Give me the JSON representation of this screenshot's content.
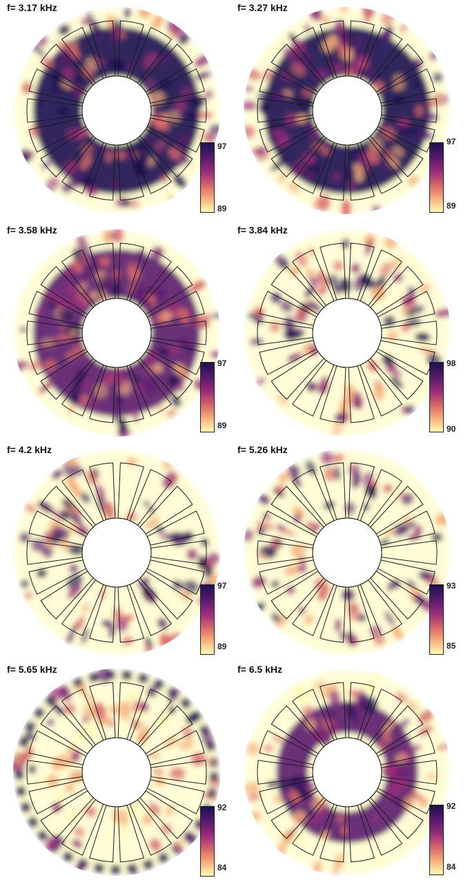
{
  "chart_data": [
    {
      "type": "heatmap",
      "title": "f= 3.17 kHz",
      "colorbar": {
        "max": 97,
        "min": 89
      },
      "ring_intensity": 0.85,
      "ring_profile": "broad",
      "colors": [
        "#fffbb4",
        "#f5ae7a",
        "#d9686b",
        "#9a2e7a",
        "#5a1a6e",
        "#1c1050"
      ]
    },
    {
      "type": "heatmap",
      "title": "f= 3.27 kHz",
      "colorbar": {
        "max": 97,
        "min": 89
      },
      "ring_intensity": 0.85,
      "ring_profile": "broad",
      "colors": [
        "#fffbb4",
        "#f5ae7a",
        "#d9686b",
        "#9a2e7a",
        "#5a1a6e",
        "#1c1050"
      ]
    },
    {
      "type": "heatmap",
      "title": "f= 3.58 kHz",
      "colorbar": {
        "max": 97,
        "min": 89
      },
      "ring_intensity": 0.75,
      "ring_profile": "broad",
      "colors": [
        "#fffbb4",
        "#f5ae7a",
        "#d9686b",
        "#9a2e7a",
        "#5a1a6e",
        "#1c1050"
      ]
    },
    {
      "type": "heatmap",
      "title": "f= 3.84 kHz",
      "colorbar": {
        "max": 98,
        "min": 90
      },
      "ring_intensity": 0.6,
      "ring_profile": "spokes",
      "colors": [
        "#fffbb4",
        "#f5ae7a",
        "#d9686b",
        "#9a2e7a",
        "#5a1a6e",
        "#1c1050"
      ]
    },
    {
      "type": "heatmap",
      "title": "f= 4.2 kHz",
      "colorbar": {
        "max": 97,
        "min": 89
      },
      "ring_intensity": 0.6,
      "ring_profile": "blobs",
      "colors": [
        "#fffbb4",
        "#f5ae7a",
        "#d9686b",
        "#9a2e7a",
        "#5a1a6e",
        "#1c1050"
      ]
    },
    {
      "type": "heatmap",
      "title": "f= 5.26 kHz",
      "colorbar": {
        "max": 93,
        "min": 85
      },
      "ring_intensity": 0.5,
      "ring_profile": "blobs",
      "colors": [
        "#fffbb4",
        "#f5ae7a",
        "#d9686b",
        "#9a2e7a",
        "#5a1a6e",
        "#1c1050"
      ]
    },
    {
      "type": "heatmap",
      "title": "f= 5.65 kHz",
      "colorbar": {
        "max": 92,
        "min": 84
      },
      "ring_intensity": 0.35,
      "ring_profile": "outer",
      "colors": [
        "#fffbb4",
        "#f5ae7a",
        "#d9686b",
        "#9a2e7a",
        "#5a1a6e",
        "#1c1050"
      ]
    },
    {
      "type": "heatmap",
      "title": "f= 6.5 kHz",
      "colorbar": {
        "max": 92,
        "min": 84
      },
      "ring_intensity": 0.8,
      "ring_profile": "inner",
      "colors": [
        "#fffbb4",
        "#f5ae7a",
        "#d9686b",
        "#9a2e7a",
        "#5a1a6e",
        "#1c1050"
      ]
    }
  ]
}
